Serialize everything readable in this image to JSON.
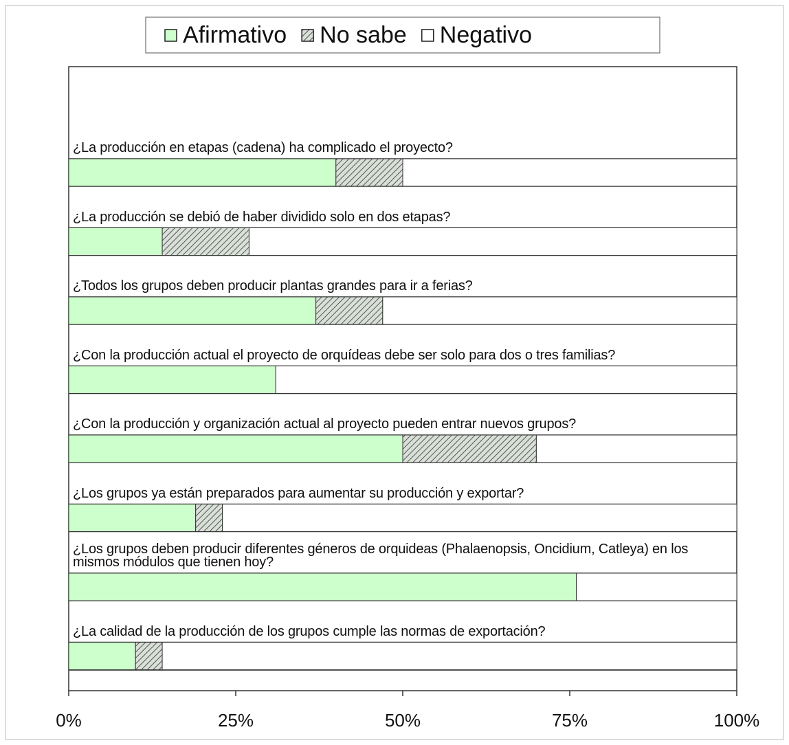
{
  "chart_data": {
    "type": "stacked_barh",
    "categories": [
      "¿La producción en etapas (cadena) ha complicado el proyecto?",
      "¿La producción se debió de haber dividido solo en dos etapas?",
      "¿Todos los grupos deben producir plantas grandes para ir a ferias?",
      "¿Con la producción actual el proyecto de orquídeas debe ser solo para dos o tres familias?",
      "¿Con la producción y organización actual al proyecto pueden entrar nuevos grupos?",
      "¿Los grupos ya están preparados para aumentar su producción y exportar?",
      "¿Los grupos deben producir diferentes géneros de orquideas (Phalaenopsis, Oncidium, Catleya) en los mismos módulos que tienen hoy?",
      "¿La calidad de la producción de los grupos cumple las normas de exportación?"
    ],
    "series": [
      {
        "name": "Afirmativo",
        "color": "#ccffcc",
        "hatch": false,
        "values": [
          40,
          14,
          37,
          31,
          50,
          19,
          76,
          10
        ]
      },
      {
        "name": "No sabe",
        "color": "#b8c4b8",
        "hatch": true,
        "values": [
          10,
          13,
          10,
          0,
          20,
          4,
          0,
          4
        ]
      },
      {
        "name": "Negativo",
        "color": "#ffffff",
        "hatch": false,
        "values": [
          50,
          73,
          53,
          69,
          30,
          77,
          24,
          86
        ]
      }
    ],
    "xlim": [
      0,
      100
    ],
    "xticks": [
      {
        "value": 0,
        "label": "0%"
      },
      {
        "value": 25,
        "label": "25%"
      },
      {
        "value": 50,
        "label": "50%"
      },
      {
        "value": 75,
        "label": "75%"
      },
      {
        "value": 100,
        "label": "100%"
      }
    ],
    "grid": false,
    "legend": "top"
  }
}
